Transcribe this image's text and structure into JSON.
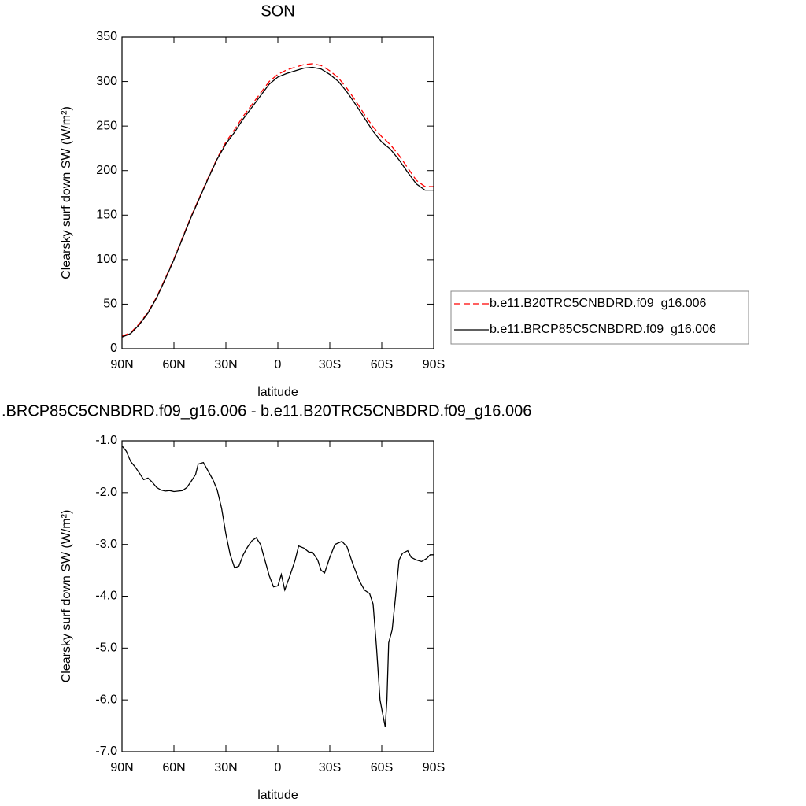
{
  "chart_data": [
    {
      "type": "line",
      "title": "SON",
      "xlabel": "latitude",
      "ylabel": "Clearsky surf down SW (W/m²)",
      "x": [
        90,
        85,
        80,
        75,
        70,
        65,
        60,
        55,
        50,
        45,
        40,
        35,
        30,
        25,
        20,
        15,
        10,
        5,
        0,
        -5,
        -10,
        -15,
        -20,
        -25,
        -30,
        -35,
        -40,
        -45,
        -50,
        -55,
        -60,
        -65,
        -70,
        -75,
        -80,
        -85,
        -90
      ],
      "series": [
        {
          "name": "b.e11.B20TRC5CNBDRD.f09_g16.006",
          "color": "#ff0000",
          "style": "dashed",
          "values": [
            14,
            18,
            28,
            41,
            58,
            79,
            101,
            125,
            149,
            171,
            193,
            214,
            232,
            246,
            261,
            274,
            287,
            300,
            308,
            313,
            316,
            319,
            320,
            318,
            312,
            304,
            292,
            278,
            263,
            249,
            238,
            229,
            217,
            203,
            189,
            182,
            182
          ]
        },
        {
          "name": "b.e11.BRCP85C5CNBDRD.f09_g16.006",
          "color": "#000000",
          "style": "solid",
          "values": [
            13,
            17,
            27,
            40,
            57,
            78,
            100,
            124,
            148,
            170,
            192,
            213,
            230,
            243,
            258,
            271,
            284,
            297,
            305,
            309,
            312,
            315,
            316,
            314,
            308,
            300,
            288,
            274,
            259,
            244,
            232,
            224,
            212,
            198,
            185,
            178,
            178
          ]
        }
      ],
      "xlim": [
        90,
        -90
      ],
      "xticks": [
        {
          "value": 90,
          "label": "90N"
        },
        {
          "value": 60,
          "label": "60N"
        },
        {
          "value": 30,
          "label": "30N"
        },
        0,
        {
          "value": -30,
          "label": "30S"
        },
        {
          "value": -60,
          "label": "60S"
        },
        {
          "value": -90,
          "label": "90S"
        }
      ],
      "ylim": [
        0,
        350
      ],
      "yticks": [
        0,
        50,
        100,
        150,
        200,
        250,
        300,
        350
      ],
      "legend": "right"
    },
    {
      "type": "line",
      "title": ".BRCP85C5CNBDRD.f09_g16.006 - b.e11.B20TRC5CNBDRD.f09_g16.006",
      "xlabel": "latitude",
      "ylabel": "Clearsky surf down SW (W/m²)",
      "x": [
        90,
        87.5,
        85,
        82.5,
        80,
        77.5,
        75,
        72.5,
        70,
        67.5,
        65,
        62.5,
        60,
        57.5,
        55,
        52.5,
        50,
        47.5,
        46,
        43,
        40,
        37.5,
        35,
        32.5,
        30,
        27.5,
        25,
        22.5,
        20,
        17.5,
        15,
        12.5,
        10,
        7.5,
        5,
        2.5,
        0,
        -2,
        -4,
        -7,
        -10,
        -12,
        -15,
        -18,
        -20,
        -23,
        -25,
        -27,
        -30,
        -33,
        -37,
        -40,
        -43,
        -47,
        -50,
        -53,
        -55,
        -57,
        -59,
        -61,
        -62,
        -63,
        -64,
        -66,
        -68,
        -70,
        -72,
        -75,
        -77,
        -80,
        -83,
        -86,
        -88,
        -90
      ],
      "series": [
        {
          "name": null,
          "color": "#000000",
          "style": "solid",
          "values": [
            -1.1,
            -1.2,
            -1.4,
            -1.5,
            -1.62,
            -1.75,
            -1.72,
            -1.8,
            -1.9,
            -1.95,
            -1.97,
            -1.96,
            -1.98,
            -1.97,
            -1.96,
            -1.9,
            -1.78,
            -1.65,
            -1.45,
            -1.42,
            -1.6,
            -1.75,
            -1.95,
            -2.3,
            -2.8,
            -3.2,
            -3.45,
            -3.42,
            -3.2,
            -3.05,
            -2.93,
            -2.87,
            -3.0,
            -3.3,
            -3.6,
            -3.82,
            -3.8,
            -3.58,
            -3.88,
            -3.6,
            -3.3,
            -3.03,
            -3.07,
            -3.15,
            -3.15,
            -3.3,
            -3.5,
            -3.55,
            -3.25,
            -3.0,
            -2.94,
            -3.05,
            -3.35,
            -3.7,
            -3.88,
            -3.95,
            -4.15,
            -5.0,
            -6.0,
            -6.35,
            -6.52,
            -6.0,
            -4.9,
            -4.65,
            -4.0,
            -3.3,
            -3.17,
            -3.12,
            -3.25,
            -3.3,
            -3.33,
            -3.27,
            -3.2,
            -3.2
          ]
        }
      ],
      "xlim": [
        90,
        -90
      ],
      "xticks": [
        {
          "value": 90,
          "label": "90N"
        },
        {
          "value": 60,
          "label": "60N"
        },
        {
          "value": 30,
          "label": "30N"
        },
        0,
        {
          "value": -30,
          "label": "30S"
        },
        {
          "value": -60,
          "label": "60S"
        },
        {
          "value": -90,
          "label": "90S"
        }
      ],
      "ylim": [
        -7,
        -1
      ],
      "yticks": [
        {
          "value": -7,
          "label": "-7.0"
        },
        {
          "value": -6,
          "label": "-6.0"
        },
        {
          "value": -5,
          "label": "-5.0"
        },
        {
          "value": -4,
          "label": "-4.0"
        },
        {
          "value": -3,
          "label": "-3.0"
        },
        {
          "value": -2,
          "label": "-2.0"
        },
        {
          "value": -1,
          "label": "-1.0"
        }
      ]
    }
  ]
}
